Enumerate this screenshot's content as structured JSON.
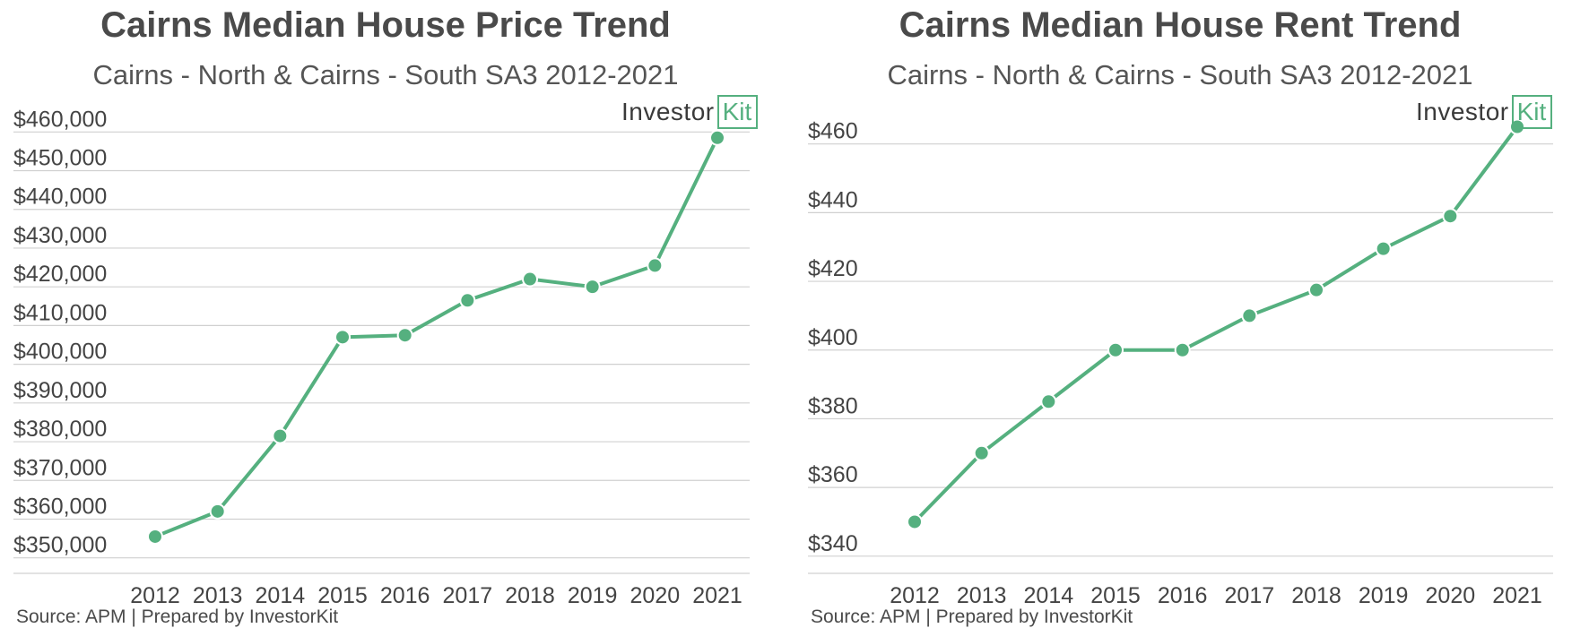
{
  "colors": {
    "line": "#55b07f",
    "grid": "#d0d0d0",
    "text": "#444444",
    "logo_accent": "#55b07f"
  },
  "logo": {
    "text": "Investor",
    "box_text": "Kit"
  },
  "chart_data": [
    {
      "type": "line",
      "title": "Cairns Median House Price Trend",
      "subtitle": "Cairns - North & Cairns - South SA3 2012-2021",
      "source": "Source: APM | Prepared by InvestorKit",
      "categories": [
        "2012",
        "2013",
        "2014",
        "2015",
        "2016",
        "2017",
        "2018",
        "2019",
        "2020",
        "2021"
      ],
      "values": [
        355500,
        362000,
        381500,
        407000,
        407500,
        416500,
        422000,
        420000,
        425500,
        458500
      ],
      "y_ticks": [
        350000,
        360000,
        370000,
        380000,
        390000,
        400000,
        410000,
        420000,
        430000,
        440000,
        450000,
        460000
      ],
      "y_tick_labels": [
        "$350,000",
        "$360,000",
        "$370,000",
        "$380,000",
        "$390,000",
        "$400,000",
        "$410,000",
        "$420,000",
        "$430,000",
        "$440,000",
        "$450,000",
        "$460,000"
      ],
      "ylim": [
        346000,
        464000
      ],
      "xlabel": "",
      "ylabel": "",
      "grid": true,
      "legend": "none"
    },
    {
      "type": "line",
      "title": "Cairns Median House Rent Trend",
      "subtitle": "Cairns - North & Cairns - South SA3 2012-2021",
      "source": "Source: APM | Prepared by InvestorKit",
      "categories": [
        "2012",
        "2013",
        "2014",
        "2015",
        "2016",
        "2017",
        "2018",
        "2019",
        "2020",
        "2021"
      ],
      "values": [
        350,
        370,
        385,
        400,
        400,
        410,
        417.5,
        429.5,
        439,
        465
      ],
      "y_ticks": [
        340,
        360,
        380,
        400,
        420,
        440,
        460
      ],
      "y_tick_labels": [
        "$340",
        "$360",
        "$380",
        "$400",
        "$420",
        "$440",
        "$460"
      ],
      "ylim": [
        335,
        468
      ],
      "xlabel": "",
      "ylabel": "",
      "grid": true,
      "legend": "none"
    }
  ]
}
